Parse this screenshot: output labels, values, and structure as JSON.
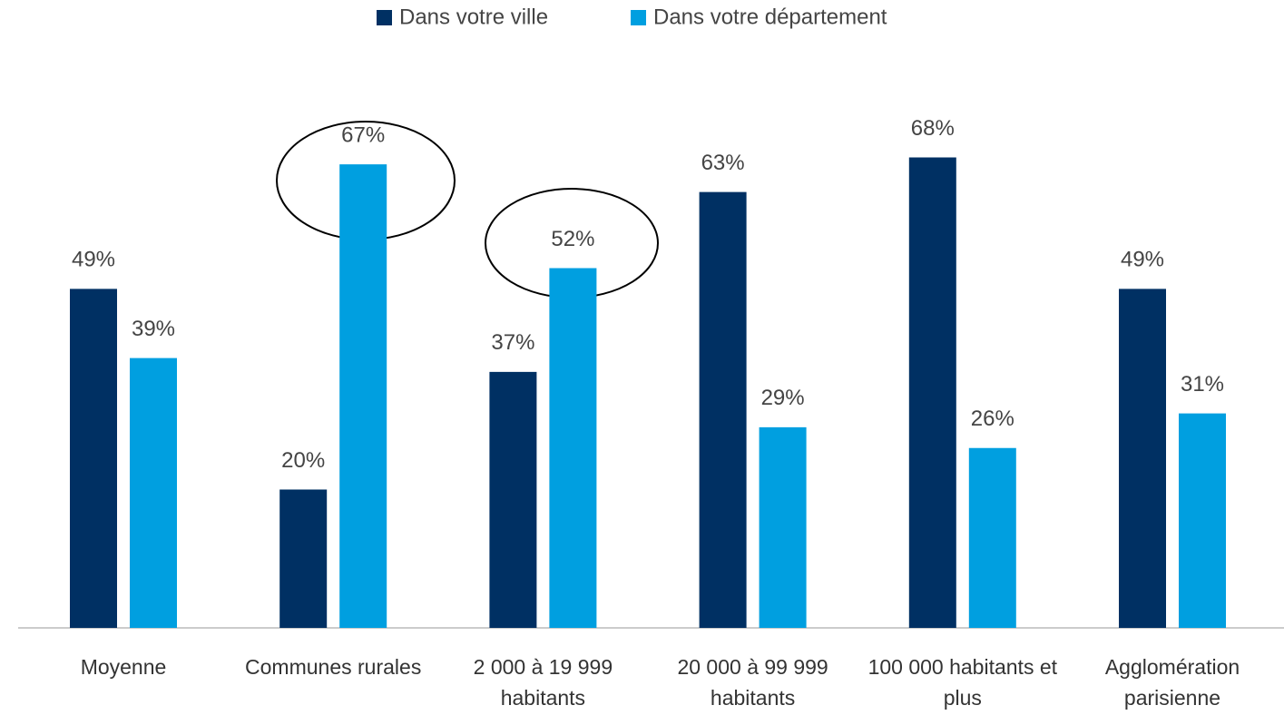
{
  "chart_data": {
    "type": "bar",
    "categories": [
      "Moyenne",
      "Communes rurales",
      "2 000 à 19 999 habitants",
      "20 000 à 99 999 habitants",
      "100 000 habitants et plus",
      "Agglomération parisienne"
    ],
    "series": [
      {
        "name": "Dans votre ville",
        "color": "#003063",
        "values": [
          49,
          20,
          37,
          63,
          68,
          49
        ],
        "value_labels": [
          "49%",
          "20%",
          "37%",
          "63%",
          "68%",
          "49%"
        ]
      },
      {
        "name": "Dans votre département",
        "color": "#009fe0",
        "values": [
          39,
          67,
          52,
          29,
          26,
          31
        ],
        "value_labels": [
          "39%",
          "67%",
          "52%",
          "29%",
          "26%",
          "31%"
        ]
      }
    ],
    "ylim": [
      0,
      80
    ],
    "legend": "top"
  }
}
